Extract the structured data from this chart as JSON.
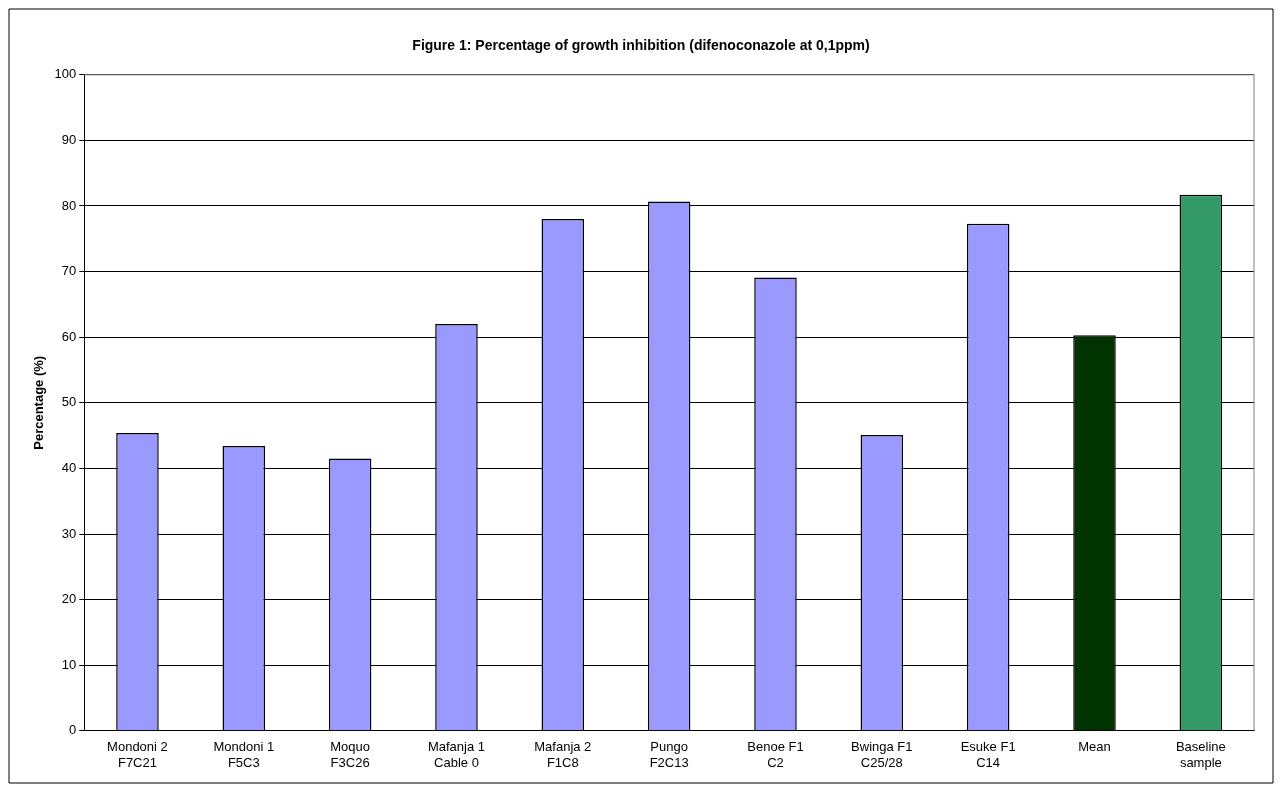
{
  "chart_data": {
    "type": "bar",
    "title": "Figure 1: Percentage of growth inhibition (difenoconazole at 0,1ppm)",
    "ylabel": "Percentage (%)",
    "categories": [
      "Mondoni 2\nF7C21",
      "Mondoni 1\nF5C3",
      "Moquo\nF3C26",
      "Mafanja 1\nCable 0",
      "Mafanja 2\nF1C8",
      "Pungo\nF2C13",
      "Benoe F1\nC2",
      "Bwinga F1\nC25/28",
      "Esuke F1\nC14",
      "Mean",
      "Baseline\nsample"
    ],
    "values": [
      45.4,
      43.4,
      41.5,
      62,
      78,
      80.7,
      69.1,
      45.1,
      77.3,
      60.3,
      81.7
    ],
    "colors": [
      "#9999ff",
      "#9999ff",
      "#9999ff",
      "#9999ff",
      "#9999ff",
      "#9999ff",
      "#9999ff",
      "#9999ff",
      "#9999ff",
      "#003300",
      "#339966"
    ],
    "ylim": [
      0,
      100
    ],
    "yticks": [
      0,
      10,
      20,
      30,
      40,
      50,
      60,
      70,
      80,
      90,
      100
    ],
    "grid": "y",
    "legend": false
  }
}
